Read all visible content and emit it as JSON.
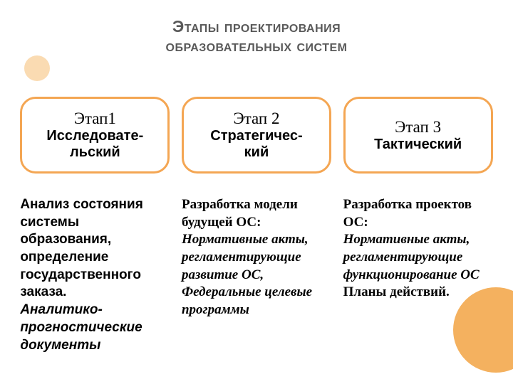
{
  "title": {
    "text": "Этапы проектирования образовательных систем",
    "line1": "Этапы проектирования",
    "line2": "образовательных систем",
    "color": "#595959",
    "fontsize": 23
  },
  "decorative": {
    "circle_top_color": "#fadbb2",
    "circle_bottom_color": "#f4b15f"
  },
  "stages": [
    {
      "title": "Этап1",
      "subtitle": "Исследовате-льский",
      "subtitle_line1": "Исследовате-",
      "subtitle_line2": "льский"
    },
    {
      "title": "Этап 2",
      "subtitle": "Стратегичес-кий",
      "subtitle_line1": "Стратегичес-",
      "subtitle_line2": "кий"
    },
    {
      "title": "Этап 3",
      "subtitle": "Тактический",
      "subtitle_line1": "Тактический",
      "subtitle_line2": ""
    }
  ],
  "stage_box": {
    "border_color": "#f4a653",
    "title_fontsize": 23,
    "title_color": "#000000",
    "subtitle_fontsize": 20,
    "subtitle_color": "#000000"
  },
  "descriptions": [
    {
      "plain": "Анализ состояния системы образования, определение государственного заказа.",
      "italic": "Аналитико-прогностические документы"
    },
    {
      "heading": "Разработка модели будущей ОС:",
      "italic": "Нормативные акты, регламентирующие развитие ОС, Федеральные целевые программы"
    },
    {
      "heading": "Разработка проектов ОС:",
      "italic": "Нормативные акты, регламентирующие функционирование ОС",
      "trailing": "Планы действий."
    }
  ],
  "desc_style": {
    "fontsize": 19,
    "color": "#000000"
  }
}
